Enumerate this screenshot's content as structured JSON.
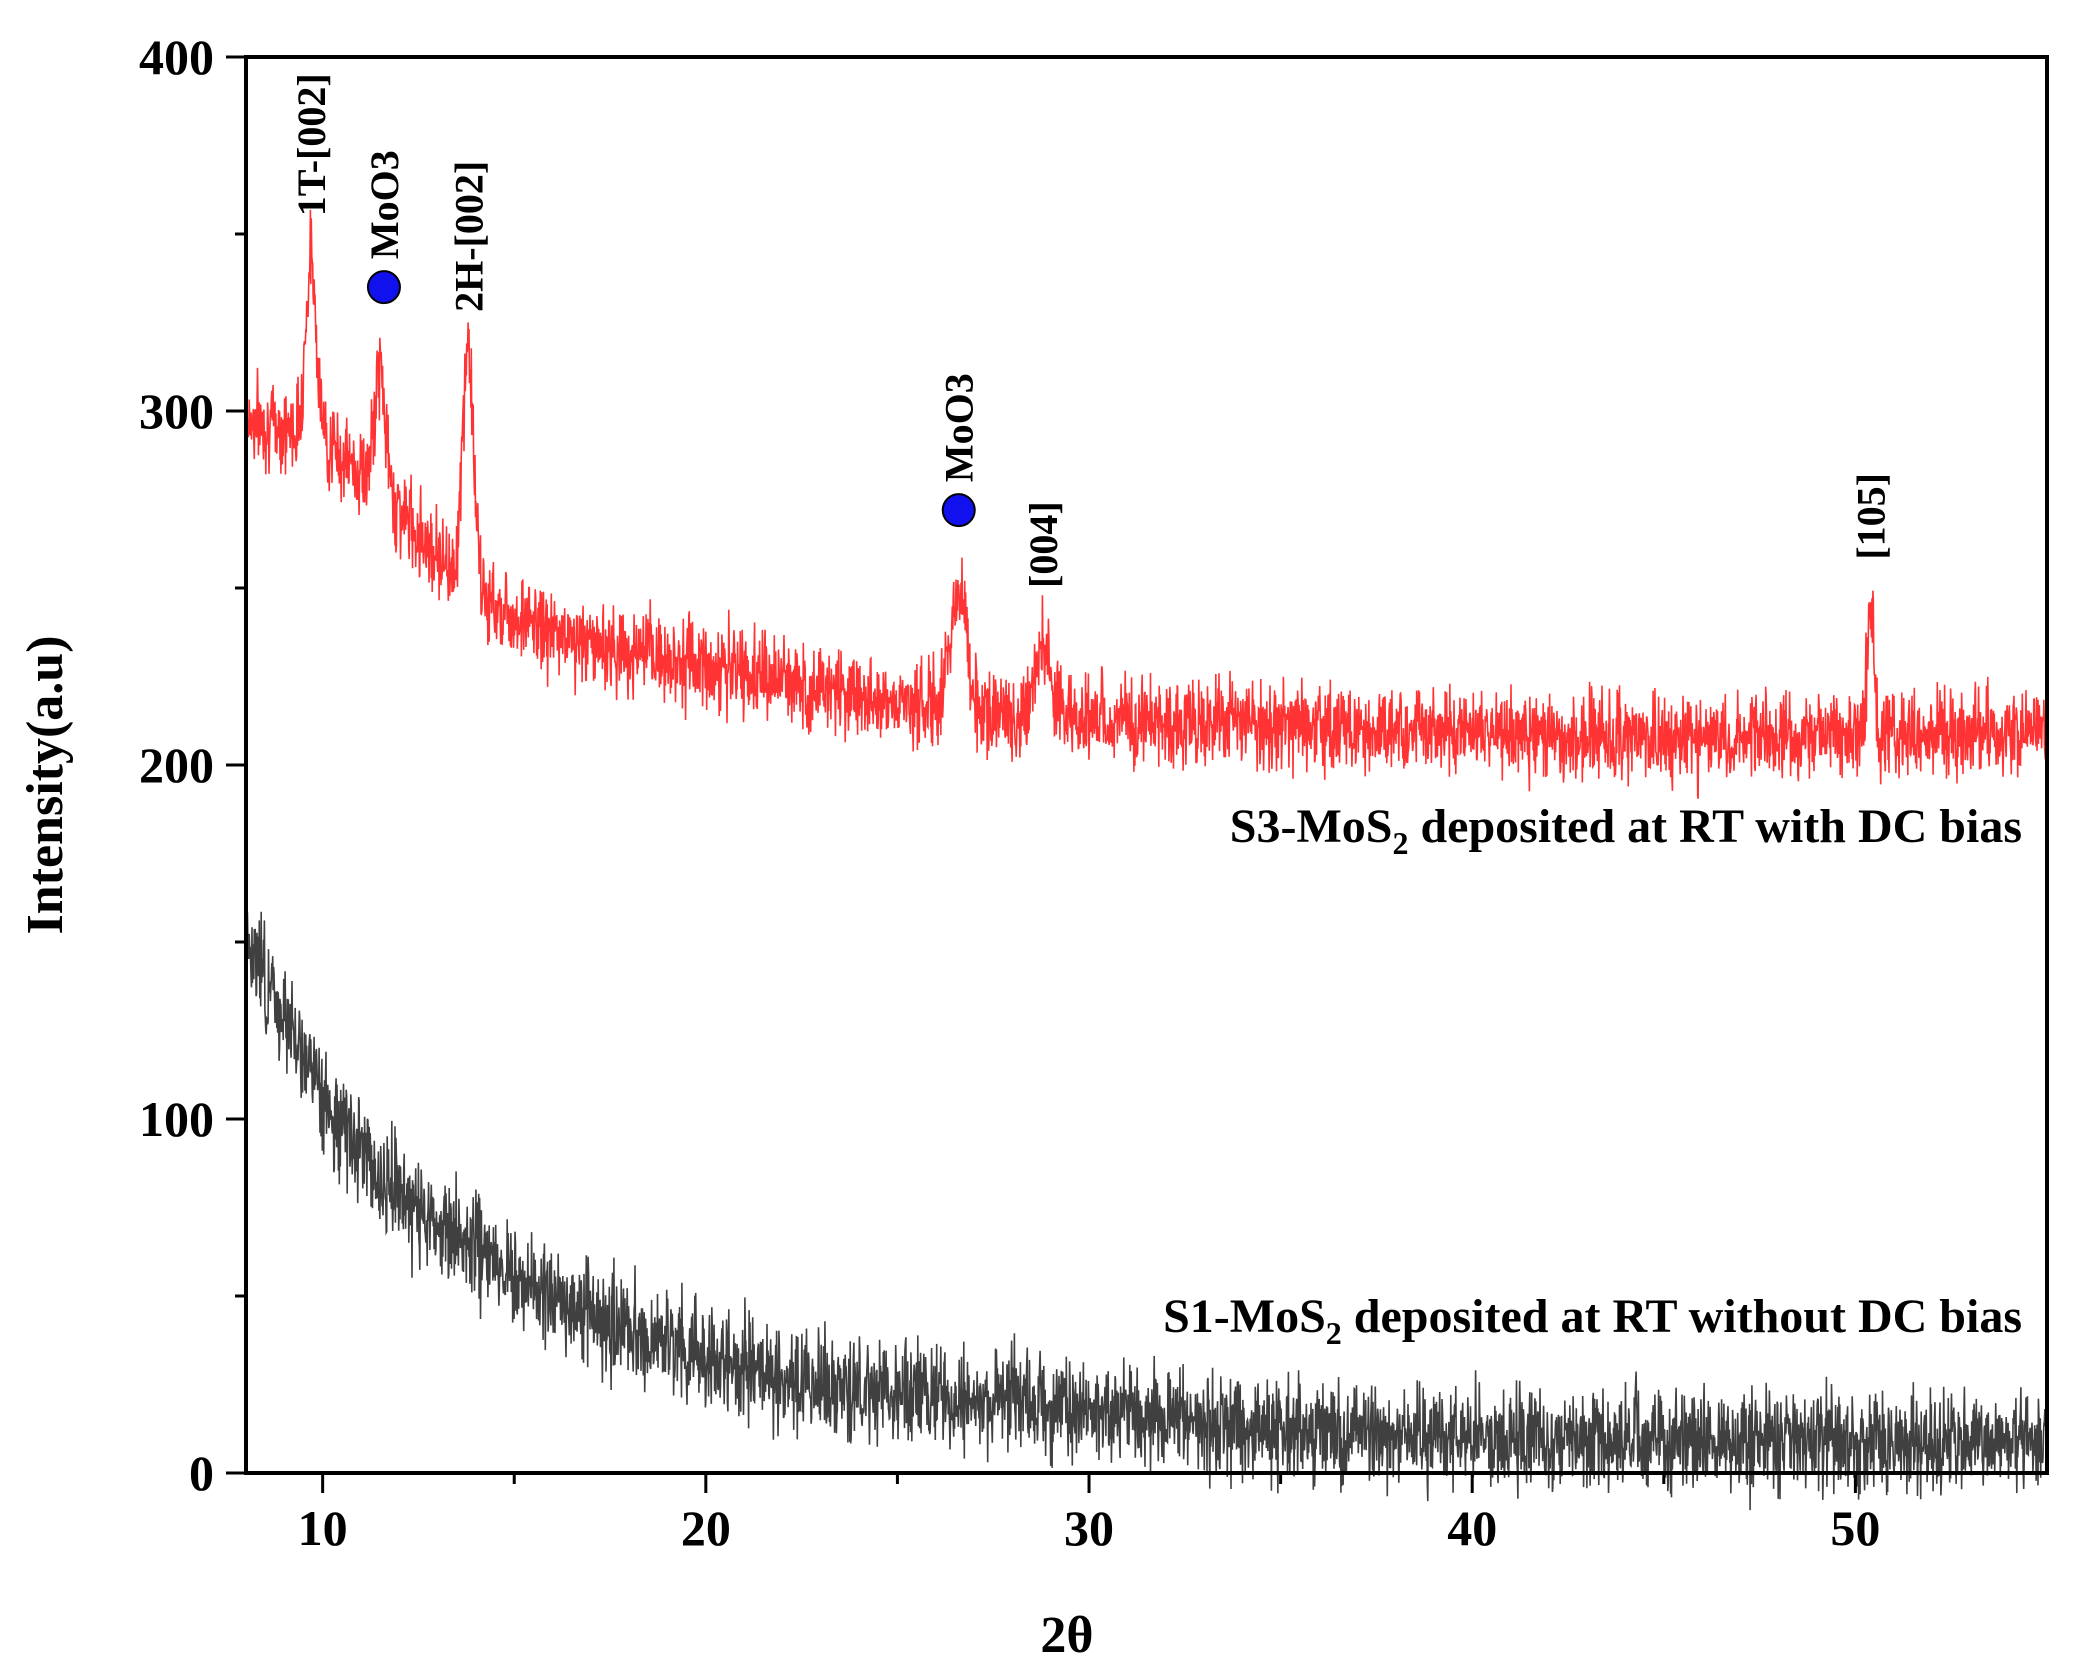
{
  "chart_data": {
    "type": "line",
    "title": "",
    "xlabel": "2θ",
    "ylabel": "Intensity(a.u)",
    "xlim": [
      8,
      55
    ],
    "ylim": [
      0,
      400
    ],
    "x_ticks": [
      10,
      20,
      30,
      40,
      50
    ],
    "y_ticks": [
      0,
      100,
      200,
      300,
      400
    ],
    "grid": false,
    "series": [
      {
        "name": "S3-MoS2 deposited at RT with DC bias",
        "label_main": "S3-MoS",
        "label_sub": "2",
        "label_rest": " deposited at RT with DC bias",
        "color": "#ff3333",
        "noise": 12,
        "seed": 7,
        "baseline": [
          [
            8,
            298
          ],
          [
            10,
            292
          ],
          [
            12,
            272
          ],
          [
            14,
            248
          ],
          [
            16,
            237
          ],
          [
            18,
            232
          ],
          [
            20,
            228
          ],
          [
            22,
            224
          ],
          [
            24,
            220
          ],
          [
            26,
            216
          ],
          [
            28,
            214
          ],
          [
            30,
            213
          ],
          [
            35,
            211
          ],
          [
            40,
            209
          ],
          [
            45,
            208
          ],
          [
            50,
            208
          ],
          [
            55,
            210
          ]
        ],
        "peaks": [
          {
            "pos": 9.7,
            "height": 50,
            "width": 0.2
          },
          {
            "pos": 11.5,
            "height": 35,
            "width": 0.2
          },
          {
            "pos": 13.8,
            "height": 68,
            "width": 0.2
          },
          {
            "pos": 26.6,
            "height": 35,
            "width": 0.3
          },
          {
            "pos": 28.8,
            "height": 20,
            "width": 0.3
          },
          {
            "pos": 50.4,
            "height": 40,
            "width": 0.12
          }
        ]
      },
      {
        "name": "S1-MoS2 deposited at RT without DC bias",
        "label_main": "S1-MoS",
        "label_sub": "2",
        "label_rest": " deposited at RT without DC bias",
        "color": "#404040",
        "noise": 14,
        "seed": 3,
        "baseline": [
          [
            8,
            150
          ],
          [
            9,
            130
          ],
          [
            10,
            105
          ],
          [
            12,
            78
          ],
          [
            14,
            62
          ],
          [
            16,
            50
          ],
          [
            18,
            40
          ],
          [
            20,
            32
          ],
          [
            22,
            27
          ],
          [
            24,
            24
          ],
          [
            26,
            22
          ],
          [
            28,
            21
          ],
          [
            30,
            18
          ],
          [
            32,
            15
          ],
          [
            35,
            12
          ],
          [
            40,
            10
          ],
          [
            45,
            9
          ],
          [
            50,
            9
          ],
          [
            55,
            9
          ]
        ],
        "peaks": []
      }
    ],
    "annotations": [
      {
        "text": "1T-[002]",
        "x": 9.7,
        "y": 355,
        "marker": false
      },
      {
        "text": "MoO3",
        "x": 11.6,
        "y": 335,
        "marker": true
      },
      {
        "text": "2H-[002]",
        "x": 13.8,
        "y": 328,
        "marker": false
      },
      {
        "text": "MoO3",
        "x": 26.6,
        "y": 272,
        "marker": true
      },
      {
        "text": "[004]",
        "x": 28.8,
        "y": 250,
        "marker": false
      },
      {
        "text": "[105]",
        "x": 50.4,
        "y": 258,
        "marker": false
      }
    ],
    "marker_color": "#1111ee"
  }
}
